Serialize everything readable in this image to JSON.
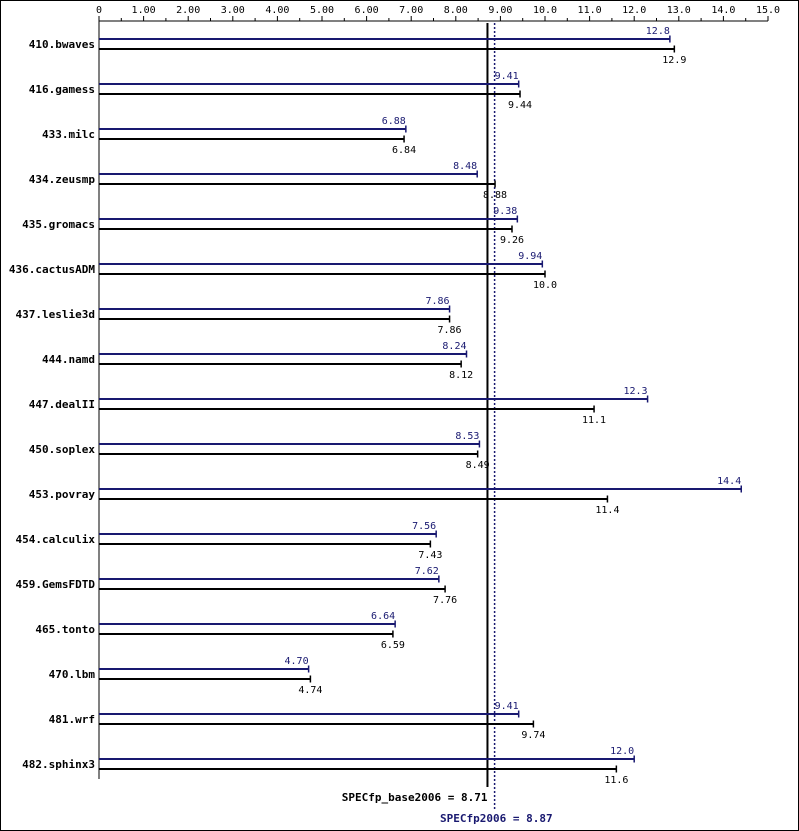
{
  "chart_data": {
    "type": "bar",
    "orientation": "horizontal",
    "xlim": [
      0,
      15.0
    ],
    "x_ticks": [
      "0",
      "1.00",
      "2.00",
      "3.00",
      "4.00",
      "5.00",
      "6.00",
      "7.00",
      "8.00",
      "9.00",
      "10.0",
      "11.0",
      "12.0",
      "13.0",
      "14.0",
      "15.0"
    ],
    "categories": [
      "410.bwaves",
      "416.gamess",
      "433.milc",
      "434.zeusmp",
      "435.gromacs",
      "436.cactusADM",
      "437.leslie3d",
      "444.namd",
      "447.dealII",
      "450.soplex",
      "453.povray",
      "454.calculix",
      "459.GemsFDTD",
      "465.tonto",
      "470.lbm",
      "481.wrf",
      "482.sphinx3"
    ],
    "series": [
      {
        "name": "SPECfp2006",
        "color": "#191970",
        "values": [
          12.8,
          9.41,
          6.88,
          8.48,
          9.38,
          9.94,
          7.86,
          8.24,
          12.3,
          8.53,
          14.4,
          7.56,
          7.62,
          6.64,
          4.7,
          9.41,
          12.0
        ],
        "labels": [
          "12.8",
          "9.41",
          "6.88",
          "8.48",
          "9.38",
          "9.94",
          "7.86",
          "8.24",
          "12.3",
          "8.53",
          "14.4",
          "7.56",
          "7.62",
          "6.64",
          "4.70",
          "9.41",
          "12.0"
        ]
      },
      {
        "name": "SPECfp_base2006",
        "color": "#000000",
        "values": [
          12.9,
          9.44,
          6.84,
          8.88,
          9.26,
          10.0,
          7.86,
          8.12,
          11.1,
          8.49,
          11.4,
          7.43,
          7.76,
          6.59,
          4.74,
          9.74,
          11.6
        ],
        "labels": [
          "12.9",
          "9.44",
          "6.84",
          "8.88",
          "9.26",
          "10.0",
          "7.86",
          "8.12",
          "11.1",
          "8.49",
          "11.4",
          "7.43",
          "7.76",
          "6.59",
          "4.74",
          "9.74",
          "11.6"
        ]
      }
    ],
    "summary": {
      "base": {
        "value": 8.71,
        "label": "SPECfp_base2006 = 8.71",
        "color": "#000000"
      },
      "peak": {
        "value": 8.87,
        "label": "SPECfp2006 = 8.87",
        "color": "#191970"
      }
    },
    "grid": false
  }
}
